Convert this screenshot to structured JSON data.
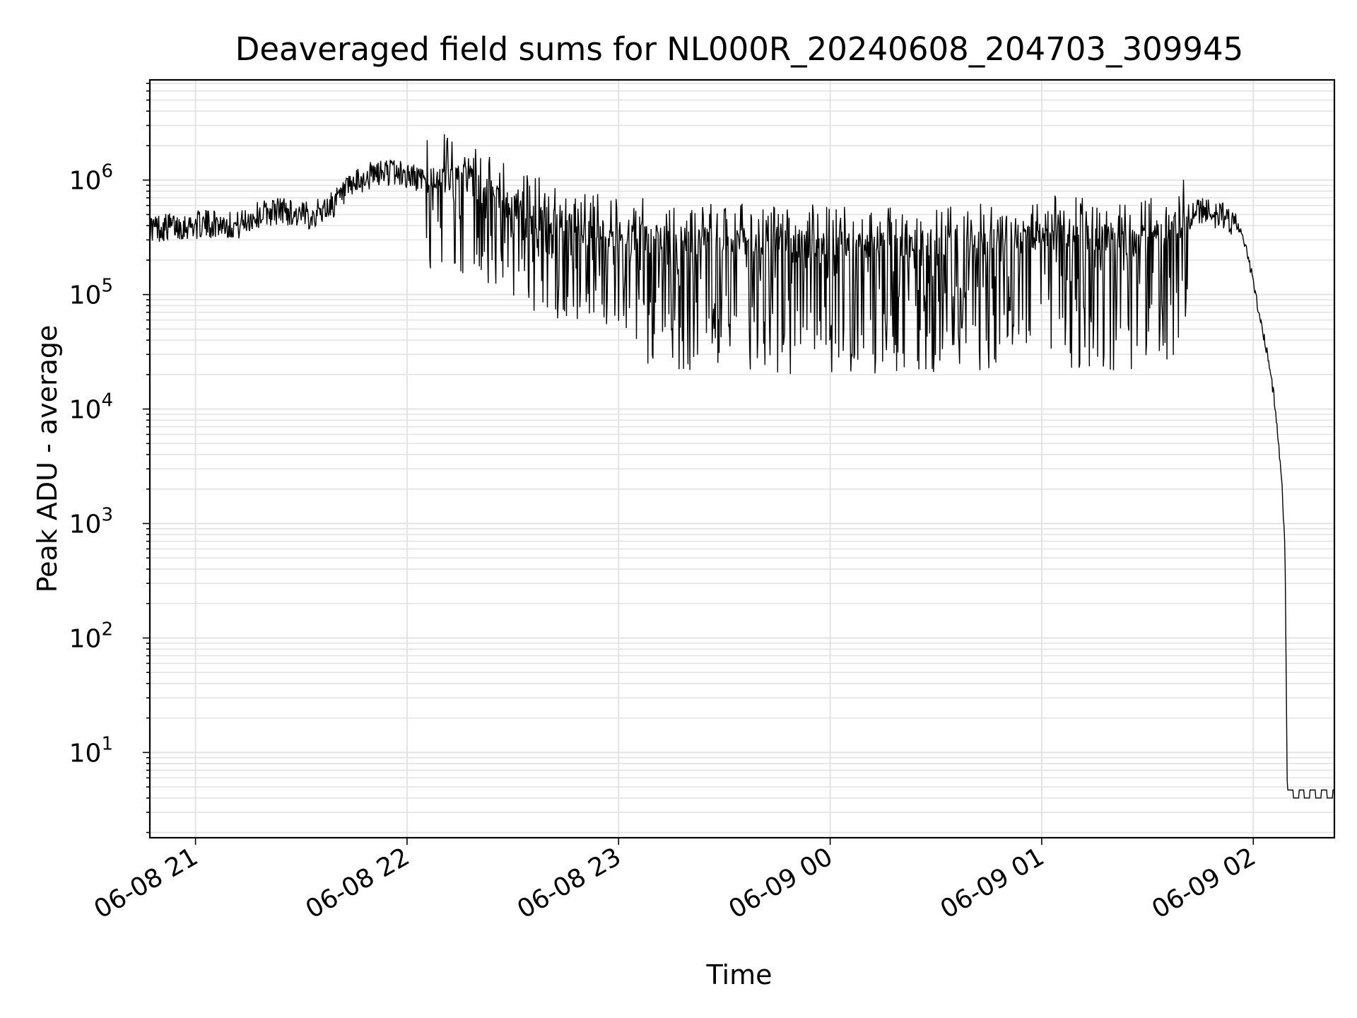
{
  "chart_data": {
    "type": "line",
    "title": "Deaveraged field sums for NL000R_20240608_204703_309945",
    "xlabel": "Time",
    "ylabel": "Peak ADU - average",
    "yscale": "log",
    "grid": true,
    "grid_color": "#e3e3e3",
    "line_color": "#000000",
    "x_range": [
      "2024-06-08 20:47:03",
      "2024-06-09 02:23:00"
    ],
    "ylim": [
      1.8,
      7500000
    ],
    "x_ticks": [
      {
        "time": "2024-06-08 21:00",
        "label": "06-08 21"
      },
      {
        "time": "2024-06-08 22:00",
        "label": "06-08 22"
      },
      {
        "time": "2024-06-08 23:00",
        "label": "06-08 23"
      },
      {
        "time": "2024-06-09 00:00",
        "label": "06-09 00"
      },
      {
        "time": "2024-06-09 01:00",
        "label": "06-09 01"
      },
      {
        "time": "2024-06-09 02:00",
        "label": "06-09 02"
      }
    ],
    "y_ticks": [
      {
        "value": 10,
        "base": "10",
        "exp": "1"
      },
      {
        "value": 100,
        "base": "10",
        "exp": "2"
      },
      {
        "value": 1000,
        "base": "10",
        "exp": "3"
      },
      {
        "value": 10000,
        "base": "10",
        "exp": "4"
      },
      {
        "value": 100000,
        "base": "10",
        "exp": "5"
      },
      {
        "value": 1000000,
        "base": "10",
        "exp": "6"
      }
    ],
    "series": [
      {
        "points": [
          [
            "2024-06-08 20:47:03",
            380000
          ],
          [
            "2024-06-08 20:52",
            390000
          ],
          [
            "2024-06-08 20:57",
            400000
          ],
          [
            "2024-06-08 21:02",
            410000
          ],
          [
            "2024-06-08 21:07",
            420000
          ],
          [
            "2024-06-08 21:12",
            400000
          ],
          [
            "2024-06-08 21:16",
            470000
          ],
          [
            "2024-06-08 21:20",
            520000
          ],
          [
            "2024-06-08 21:25",
            550000
          ],
          [
            "2024-06-08 21:30",
            480000
          ],
          [
            "2024-06-08 21:35",
            520000
          ],
          [
            "2024-06-08 21:40",
            650000
          ],
          [
            "2024-06-08 21:45",
            900000
          ],
          [
            "2024-06-08 21:50",
            1100000
          ],
          [
            "2024-06-08 21:55",
            1200000
          ],
          [
            "2024-06-08 22:00",
            1100000
          ],
          [
            "2024-06-08 22:05",
            1000000
          ],
          [
            "2024-06-08 22:10",
            1150000
          ],
          [
            "2024-06-08 22:15",
            1100000
          ],
          [
            "2024-06-08 22:20",
            900000
          ],
          [
            "2024-06-08 22:30",
            600000
          ],
          [
            "2024-06-08 22:40",
            450000
          ],
          [
            "2024-06-08 22:50",
            350000
          ],
          [
            "2024-06-08 23:00",
            320000
          ],
          [
            "2024-06-08 23:15",
            300000
          ],
          [
            "2024-06-08 23:30",
            300000
          ],
          [
            "2024-06-08 23:45",
            280000
          ],
          [
            "2024-06-09 00:00",
            270000
          ],
          [
            "2024-06-09 00:15",
            270000
          ],
          [
            "2024-06-09 00:30",
            280000
          ],
          [
            "2024-06-09 00:45",
            300000
          ],
          [
            "2024-06-09 01:00",
            330000
          ],
          [
            "2024-06-09 01:15",
            320000
          ],
          [
            "2024-06-09 01:25",
            280000
          ],
          [
            "2024-06-09 01:32",
            320000
          ],
          [
            "2024-06-09 01:38",
            420000
          ],
          [
            "2024-06-09 01:45",
            530000
          ],
          [
            "2024-06-09 01:52",
            480000
          ],
          [
            "2024-06-09 01:56",
            380000
          ],
          [
            "2024-06-09 01:58",
            250000
          ],
          [
            "2024-06-09 02:00",
            130000
          ],
          [
            "2024-06-09 02:02",
            60000
          ],
          [
            "2024-06-09 02:04",
            30000
          ],
          [
            "2024-06-09 02:06",
            12000
          ],
          [
            "2024-06-09 02:08",
            2500
          ],
          [
            "2024-06-09 02:09",
            600
          ],
          [
            "2024-06-09 02:09:40",
            4
          ],
          [
            "2024-06-09 02:23:00",
            4
          ]
        ]
      }
    ]
  }
}
